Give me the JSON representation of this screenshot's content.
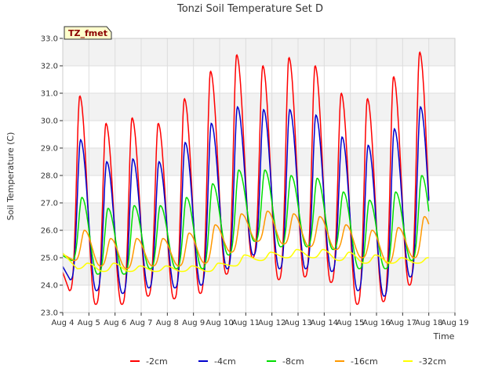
{
  "chart_data": {
    "type": "line",
    "title": "Tonzi Soil Temperature Set D",
    "xlabel": "Time",
    "ylabel": "Soil Temperature (C)",
    "site_label": "TZ_fmet",
    "ylim": [
      23.0,
      33.0
    ],
    "yticks": [
      "23.0",
      "24.0",
      "25.0",
      "26.0",
      "27.0",
      "28.0",
      "29.0",
      "30.0",
      "31.0",
      "32.0",
      "33.0"
    ],
    "xlim": [
      4,
      19
    ],
    "xticks": [
      "Aug 4",
      "Aug 5",
      "Aug 6",
      "Aug 7",
      "Aug 8",
      "Aug 9",
      "Aug 10",
      "Aug 11",
      "Aug 12",
      "Aug 13",
      "Aug 14",
      "Aug 15",
      "Aug 16",
      "Aug 17",
      "Aug 18",
      "Aug 19"
    ],
    "grid": true,
    "legend_position": "bottom",
    "series": [
      {
        "name": "-2cm",
        "color": "#ff0000",
        "peaks": [
          30.9,
          29.9,
          30.1,
          29.9,
          30.8,
          31.8,
          32.4,
          32.0,
          32.3,
          32.0,
          31.0,
          30.8,
          31.6,
          32.5
        ],
        "troughs": [
          23.8,
          23.3,
          23.3,
          23.6,
          23.5,
          23.7,
          24.4,
          25.0,
          24.2,
          24.3,
          24.1,
          23.3,
          23.4,
          24.0
        ]
      },
      {
        "name": "-4cm",
        "color": "#0000cc",
        "peaks": [
          29.3,
          28.5,
          28.6,
          28.5,
          29.2,
          29.9,
          30.5,
          30.4,
          30.4,
          30.2,
          29.4,
          29.1,
          29.7,
          30.5
        ],
        "troughs": [
          24.2,
          23.8,
          23.7,
          23.9,
          23.9,
          24.0,
          24.6,
          25.1,
          24.6,
          24.6,
          24.5,
          23.8,
          23.6,
          24.3
        ]
      },
      {
        "name": "-8cm",
        "color": "#00dd00",
        "peaks": [
          27.2,
          26.8,
          26.9,
          26.9,
          27.2,
          27.7,
          28.2,
          28.2,
          28.0,
          27.9,
          27.4,
          27.1,
          27.4,
          28.0
        ],
        "troughs": [
          24.9,
          24.4,
          24.4,
          24.6,
          24.6,
          24.6,
          25.1,
          25.6,
          25.4,
          25.4,
          25.3,
          24.6,
          24.6,
          24.9
        ]
      },
      {
        "name": "-16cm",
        "color": "#ff9900",
        "peaks": [
          26.0,
          25.7,
          25.7,
          25.7,
          25.9,
          26.2,
          26.6,
          26.7,
          26.6,
          26.5,
          26.2,
          26.0,
          26.1,
          26.5
        ],
        "troughs": [
          24.9,
          24.7,
          24.6,
          24.7,
          24.7,
          24.8,
          25.2,
          25.6,
          25.5,
          25.4,
          25.3,
          25.0,
          24.8,
          25.0
        ]
      },
      {
        "name": "-32cm",
        "color": "#ffff00",
        "peaks": [
          24.8,
          24.8,
          24.7,
          24.7,
          24.7,
          24.8,
          25.1,
          25.2,
          25.3,
          25.3,
          25.2,
          25.1,
          25.0,
          25.0
        ],
        "troughs": [
          24.6,
          24.5,
          24.5,
          24.5,
          24.5,
          24.5,
          24.7,
          24.9,
          25.0,
          25.0,
          24.9,
          24.8,
          24.8,
          24.8
        ]
      }
    ]
  }
}
